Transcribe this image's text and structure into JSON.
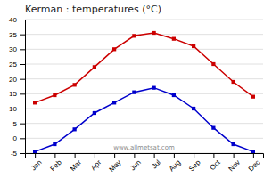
{
  "chart_data": {
    "type": "line",
    "title": "Kerman : temperatures (°C)",
    "categories": [
      "Jan",
      "Feb",
      "Mar",
      "Apr",
      "May",
      "Jun",
      "Jul",
      "Aug",
      "Sep",
      "Oct",
      "Nov",
      "Dec"
    ],
    "series": [
      {
        "color": "#cc0000",
        "marker": "square",
        "values": [
          12,
          14.5,
          18,
          24,
          30,
          34.5,
          35.5,
          33.5,
          31,
          25,
          19,
          14
        ]
      },
      {
        "color": "#0000cc",
        "marker": "square",
        "values": [
          -4.5,
          -2,
          3,
          8.5,
          12,
          15.5,
          17,
          14.5,
          10,
          3.5,
          -2,
          -4.5
        ]
      }
    ],
    "ylim": [
      -5,
      40
    ],
    "yticks": [
      -5,
      0,
      5,
      10,
      15,
      20,
      25,
      30,
      35,
      40
    ],
    "grid": true,
    "annotations": [
      "www.allmetsat.com"
    ]
  }
}
